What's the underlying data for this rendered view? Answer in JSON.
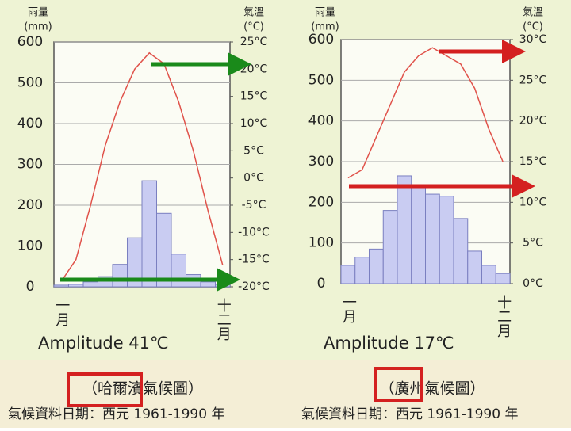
{
  "chart_data": [
    {
      "type": "climograph",
      "title": "（哈爾濱氣候圖）",
      "note": "氣候資料日期：西元 1961-1990 年",
      "annotation": "Amplitude 41℃",
      "ylabel": [
        "雨量",
        "(mm)"
      ],
      "y2label": [
        "氣溫",
        "(°C)"
      ],
      "categories": [
        "一月",
        null,
        null,
        null,
        null,
        null,
        null,
        null,
        null,
        null,
        null,
        "十二月"
      ],
      "series": [
        {
          "name": "雨量",
          "type": "bar",
          "color": "#c9ccf2",
          "values": [
            4,
            6,
            12,
            25,
            55,
            120,
            260,
            180,
            80,
            30,
            12,
            6
          ]
        },
        {
          "name": "氣溫",
          "type": "line",
          "axis": "y2",
          "color": "#e0524a",
          "values": [
            -19,
            -15,
            -5,
            6,
            14,
            20,
            23,
            21,
            14,
            5,
            -6,
            -16
          ]
        }
      ],
      "ylim": [
        0,
        600
      ],
      "yticks": [
        0,
        100,
        200,
        300,
        400,
        500,
        600
      ],
      "y2lim": [
        -20,
        25
      ],
      "y2ticks": [
        {
          "value": -20,
          "label": "-20°C"
        },
        {
          "value": -15,
          "label": "-15°C"
        },
        {
          "value": -10,
          "label": "-10°C"
        },
        {
          "value": -5,
          "label": "-5°C"
        },
        {
          "value": 0,
          "label": "0°C"
        },
        {
          "value": 5,
          "label": "5°C"
        },
        {
          "value": 10,
          "label": "10°C"
        },
        {
          "value": 15,
          "label": "15°C"
        },
        {
          "value": 20,
          "label": "20°C"
        },
        {
          "value": 25,
          "label": "25°C"
        }
      ],
      "grid": true
    },
    {
      "type": "climograph",
      "title": "（廣州氣候圖）",
      "note": "氣候資料日期：西元 1961-1990 年",
      "annotation": "Amplitude 17℃",
      "ylabel": [
        "雨量",
        "(mm)"
      ],
      "y2label": [
        "氣溫",
        "(°C)"
      ],
      "categories": [
        "一月",
        null,
        null,
        null,
        null,
        null,
        null,
        null,
        null,
        null,
        null,
        "十二月"
      ],
      "series": [
        {
          "name": "雨量",
          "type": "bar",
          "color": "#c9ccf2",
          "values": [
            45,
            65,
            85,
            180,
            265,
            240,
            220,
            215,
            160,
            80,
            45,
            25
          ]
        },
        {
          "name": "氣溫",
          "type": "line",
          "axis": "y2",
          "color": "#e0524a",
          "values": [
            13,
            14,
            18,
            22,
            26,
            28,
            29,
            28,
            27,
            24,
            19,
            15
          ]
        }
      ],
      "ylim": [
        0,
        600
      ],
      "yticks": [
        0,
        100,
        200,
        300,
        400,
        500,
        600
      ],
      "y2lim": [
        0,
        30
      ],
      "y2ticks": [
        {
          "value": 0,
          "label": "0°C"
        },
        {
          "value": 5,
          "label": "5°C"
        },
        {
          "value": 10,
          "label": "10°C"
        },
        {
          "value": 15,
          "label": "15°C"
        },
        {
          "value": 20,
          "label": "20°C"
        },
        {
          "value": 25,
          "label": "25°C"
        },
        {
          "value": 30,
          "label": "30°C"
        }
      ],
      "grid": true
    }
  ]
}
